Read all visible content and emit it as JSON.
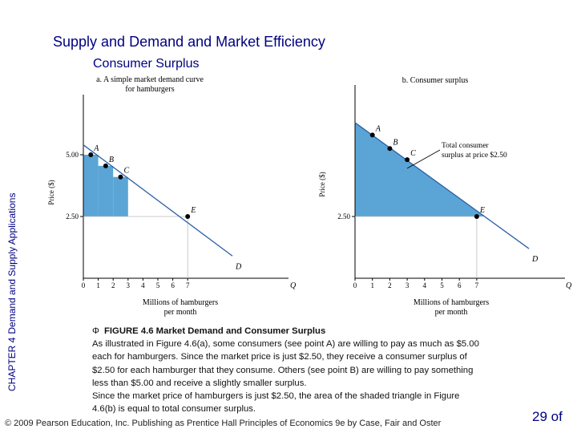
{
  "slide": {
    "title": "Supply and Demand and Market Efficiency",
    "subtitle": "Consumer Surplus",
    "side_chapter": "CHAPTER 4",
    "side_text": "Demand and Supply Applications",
    "footer": "© 2009 Pearson Education, Inc. Publishing as Prentice Hall   Principles of Economics 9e by Case, Fair and Oster",
    "page_number": "29 of"
  },
  "figure": {
    "caption_symbol": "Φ",
    "caption_title": "FIGURE 4.6  Market Demand and Consumer Surplus",
    "caption_lines": [
      "As illustrated in Figure 4.6(a), some consumers (see point A) are willing to pay as much as $5.00",
      "each for hamburgers. Since the market price is just $2.50, they receive a consumer surplus of",
      "$2.50 for each hamburger that they consume. Others (see point B) are willing to pay something",
      "less than $5.00 and receive a slightly smaller surplus.",
      "Since the market price of hamburgers is just $2.50, the area of the shaded triangle in Figure",
      "4.6(b) is equal to total consumer surplus."
    ]
  },
  "colors": {
    "title": "#000080",
    "surplus_fill": "#5aa5d5",
    "axis": "#000000"
  },
  "chart_data": [
    {
      "type": "line",
      "title": [
        "a. A simple market demand curve",
        "for hamburgers"
      ],
      "xlabel": [
        "Millions of hamburgers",
        "per month"
      ],
      "ylabel": "Price ($)",
      "x_axis_end_label": "Q",
      "x_ticks": [
        "0",
        "1",
        "2",
        "3",
        "4",
        "5",
        "6",
        "7"
      ],
      "y_ticks": [
        "2.50",
        "5.00"
      ],
      "xlim": [
        0,
        12
      ],
      "ylim": [
        0,
        6.7
      ],
      "demand_line": [
        [
          0,
          5.4
        ],
        [
          10,
          0.9
        ]
      ],
      "points": [
        {
          "label": "A",
          "x": 0.5,
          "y": 5.0
        },
        {
          "label": "B",
          "x": 1.5,
          "y": 4.55
        },
        {
          "label": "C",
          "x": 2.5,
          "y": 4.1
        },
        {
          "label": "E",
          "x": 7,
          "y": 2.5
        },
        {
          "label": "D",
          "x": 10,
          "y": 0.9,
          "dot": false
        }
      ],
      "surplus_bars": [
        {
          "x0": 0,
          "x1": 1,
          "y": 5.0
        },
        {
          "x0": 1,
          "x1": 2,
          "y": 4.55
        },
        {
          "x0": 2,
          "x1": 3,
          "y": 4.1
        }
      ],
      "price": 2.5
    },
    {
      "type": "area",
      "title": "b. Consumer surplus",
      "xlabel": [
        "Millions of hamburgers",
        "per month"
      ],
      "ylabel": "Price ($)",
      "x_axis_end_label": "Q",
      "x_ticks": [
        "0",
        "1",
        "2",
        "3",
        "4",
        "5",
        "6",
        "7"
      ],
      "y_ticks": [
        "2.50"
      ],
      "xlim": [
        0,
        12
      ],
      "ylim": [
        0,
        6.7
      ],
      "demand_line": [
        [
          0,
          6.3
        ],
        [
          10,
          1.2
        ]
      ],
      "points": [
        {
          "label": "A",
          "x": 1,
          "y": 5.8
        },
        {
          "label": "B",
          "x": 2,
          "y": 5.25
        },
        {
          "label": "C",
          "x": 3,
          "y": 4.8
        },
        {
          "label": "E",
          "x": 7,
          "y": 2.5
        },
        {
          "label": "D",
          "x": 10,
          "y": 1.2,
          "dot": false
        }
      ],
      "price": 2.5,
      "annotation": [
        "Total consumer",
        "surplus at price $2.50"
      ]
    }
  ]
}
